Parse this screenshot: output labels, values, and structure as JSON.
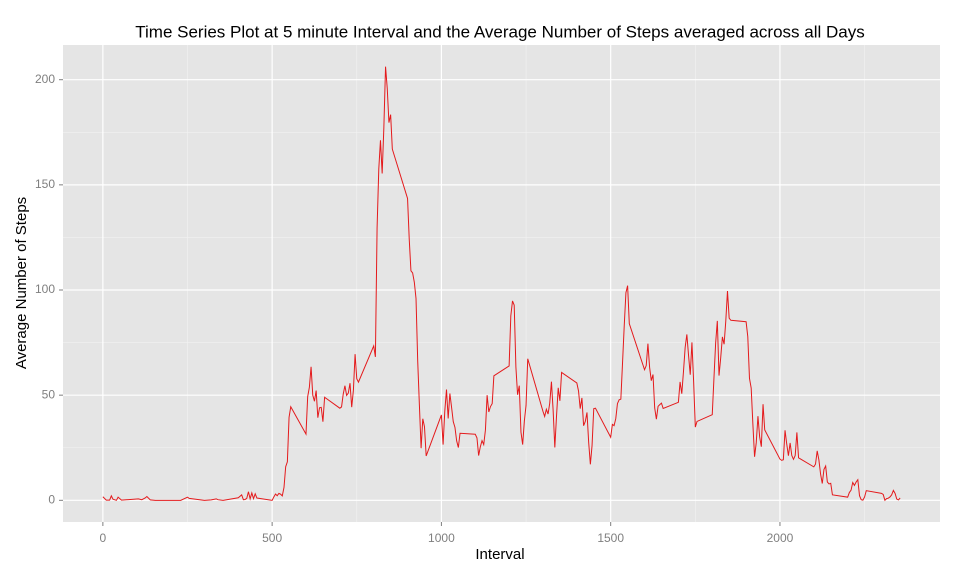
{
  "chart_data": {
    "type": "line",
    "title": "Time Series Plot at 5 minute Interval and the Average Number of Steps averaged across all Days",
    "x_label": "Interval",
    "y_label": "Average Number of Steps",
    "x": [
      0,
      10,
      20,
      25,
      30,
      40,
      45,
      55,
      105,
      115,
      125,
      130,
      140,
      155,
      205,
      215,
      230,
      250,
      255,
      300,
      320,
      335,
      340,
      355,
      400,
      410,
      415,
      420,
      425,
      430,
      435,
      440,
      445,
      450,
      455,
      500,
      505,
      510,
      515,
      520,
      525,
      530,
      535,
      540,
      545,
      550,
      555,
      600,
      605,
      610,
      615,
      620,
      625,
      630,
      635,
      640,
      645,
      650,
      655,
      700,
      705,
      710,
      715,
      720,
      725,
      730,
      735,
      740,
      745,
      750,
      755,
      800,
      805,
      810,
      815,
      820,
      825,
      830,
      835,
      840,
      845,
      850,
      855,
      900,
      905,
      910,
      915,
      920,
      925,
      930,
      935,
      940,
      945,
      950,
      955,
      1000,
      1005,
      1010,
      1015,
      1020,
      1025,
      1030,
      1035,
      1040,
      1045,
      1050,
      1055,
      1100,
      1105,
      1110,
      1115,
      1120,
      1125,
      1130,
      1135,
      1140,
      1145,
      1150,
      1155,
      1200,
      1205,
      1210,
      1215,
      1220,
      1225,
      1230,
      1235,
      1240,
      1245,
      1250,
      1255,
      1300,
      1305,
      1310,
      1315,
      1320,
      1325,
      1330,
      1335,
      1340,
      1345,
      1350,
      1355,
      1400,
      1405,
      1410,
      1415,
      1420,
      1425,
      1430,
      1435,
      1440,
      1445,
      1450,
      1455,
      1500,
      1505,
      1510,
      1515,
      1520,
      1525,
      1530,
      1535,
      1540,
      1545,
      1550,
      1555,
      1600,
      1605,
      1610,
      1615,
      1620,
      1625,
      1630,
      1635,
      1640,
      1645,
      1650,
      1655,
      1700,
      1705,
      1710,
      1715,
      1720,
      1725,
      1730,
      1735,
      1740,
      1745,
      1750,
      1755,
      1800,
      1805,
      1810,
      1815,
      1820,
      1825,
      1830,
      1835,
      1840,
      1845,
      1850,
      1855,
      1900,
      1905,
      1910,
      1915,
      1920,
      1925,
      1930,
      1935,
      1940,
      1945,
      1950,
      1955,
      2000,
      2005,
      2010,
      2015,
      2020,
      2025,
      2030,
      2035,
      2040,
      2045,
      2050,
      2055,
      2100,
      2105,
      2110,
      2115,
      2120,
      2125,
      2130,
      2135,
      2140,
      2145,
      2150,
      2155,
      2200,
      2205,
      2210,
      2215,
      2220,
      2225,
      2230,
      2235,
      2240,
      2245,
      2250,
      2255,
      2300,
      2305,
      2310,
      2315,
      2320,
      2325,
      2330,
      2335,
      2340,
      2345,
      2350,
      2355
    ],
    "series": [
      {
        "name": "Average Number of Steps",
        "color": "#e41a1c",
        "values": [
          1.7,
          0.1,
          0.1,
          2.1,
          0.5,
          0,
          1.5,
          0.1,
          0.7,
          0.3,
          1.1,
          1.8,
          0.2,
          0,
          0,
          0,
          0,
          1.5,
          0.9,
          0,
          0.2,
          0.7,
          0.3,
          0,
          1.2,
          2.6,
          0.3,
          0.4,
          0.9,
          4.1,
          0.7,
          3.5,
          0.8,
          3.1,
          1.1,
          0,
          1.6,
          3,
          2.2,
          3.3,
          2.9,
          2.1,
          6.1,
          16,
          18.3,
          39.5,
          44.5,
          31.5,
          49.3,
          53.8,
          63.5,
          50,
          47.1,
          52.2,
          39.3,
          44,
          44.2,
          37.4,
          49,
          43.8,
          44.4,
          50.5,
          54.5,
          49.9,
          51,
          55.7,
          44.3,
          52.3,
          69.5,
          57.8,
          56.2,
          73.4,
          68.2,
          129.4,
          157.5,
          171.2,
          155.4,
          177.3,
          206.2,
          195.9,
          179.6,
          183.4,
          167,
          143.5,
          124,
          109.1,
          108.1,
          103.7,
          95.9,
          66.2,
          45.2,
          24.8,
          38.8,
          35,
          21.1,
          40.6,
          26.5,
          42.4,
          52.7,
          38.9,
          50.8,
          44.3,
          37.4,
          34.7,
          28.3,
          25.1,
          31.9,
          31.4,
          29.7,
          21.3,
          25.5,
          28.4,
          26.5,
          33.4,
          50,
          42,
          44.6,
          46,
          59.2,
          63.9,
          87.7,
          94.8,
          92.8,
          63.4,
          50.2,
          54.5,
          32.4,
          26.5,
          37.7,
          45.1,
          67.3,
          42.3,
          39.9,
          43.3,
          41,
          46.2,
          56.4,
          42.8,
          25.1,
          40,
          53.5,
          47.3,
          60.8,
          55.8,
          52,
          43.6,
          48.7,
          35.5,
          37.5,
          41.8,
          27.5,
          17.1,
          26.1,
          43.6,
          43.8,
          30,
          36.1,
          35.5,
          38.8,
          46,
          47.8,
          48.1,
          65.3,
          82.9,
          98.7,
          102.1,
          84,
          62.1,
          64.1,
          74.5,
          63.2,
          56.9,
          59.8,
          43.9,
          38.6,
          44.7,
          45.5,
          46.2,
          43.7,
          46.6,
          56.3,
          50.7,
          61.2,
          72.7,
          78.9,
          68.9,
          59.7,
          75.1,
          56.5,
          34.8,
          37.5,
          40.7,
          58,
          74.7,
          85.3,
          59.3,
          67.8,
          77.7,
          74.2,
          85.3,
          99.5,
          86.6,
          85.6,
          84.9,
          77.8,
          58,
          53.4,
          36.3,
          20.7,
          27.4,
          40,
          30.2,
          25.5,
          45.7,
          33.5,
          19.6,
          19,
          19.3,
          33.3,
          26.8,
          21.2,
          27.3,
          21.3,
          19.5,
          21.3,
          32.3,
          20.2,
          15.9,
          17.2,
          23.5,
          19.2,
          12.5,
          8,
          14.7,
          16.3,
          8.7,
          7.8,
          8.1,
          2.6,
          1.5,
          3.7,
          4.8,
          8.5,
          7.1,
          8.7,
          9.8,
          2.2,
          0.3,
          0.1,
          1.6,
          4.6,
          3.3,
          2.8,
          0,
          0.8,
          1,
          1.6,
          2.6,
          4.7,
          3.3,
          0.6,
          0.2,
          1.1
        ]
      }
    ],
    "xlim": [
      -117.75,
      2472.75
    ],
    "ylim": [
      -10.31,
      216.5
    ],
    "xticks": [
      0,
      500,
      1000,
      1500,
      2000
    ],
    "yticks": [
      0,
      50,
      100,
      150,
      200
    ],
    "xminor": [
      250,
      750,
      1250,
      1750,
      2250
    ],
    "yminor": [
      25,
      75,
      125,
      175
    ],
    "grid": true
  }
}
